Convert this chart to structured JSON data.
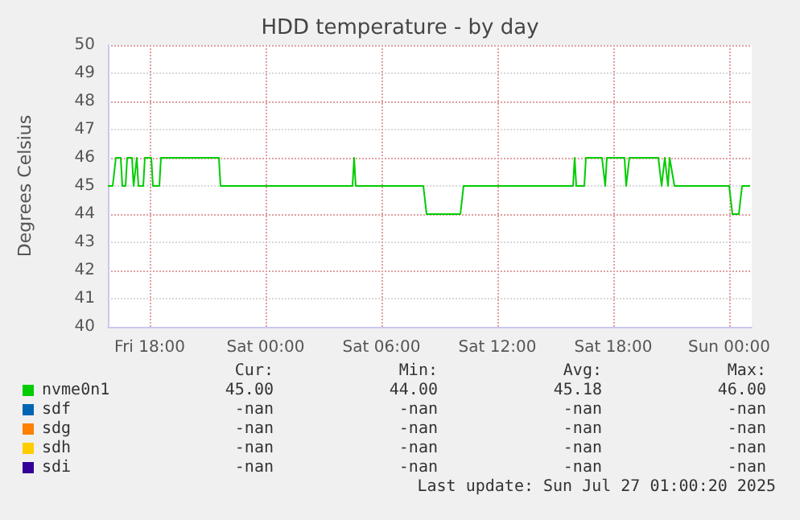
{
  "chart_data": {
    "type": "line",
    "title": "HDD temperature - by day",
    "ylabel": "Degrees Celsius",
    "xlim": [
      "2025-07-25T15:50",
      "2025-07-27T01:10"
    ],
    "xticks": [
      {
        "value": "2025-07-25T18:00",
        "label": "Fri 18:00"
      },
      {
        "value": "2025-07-26T00:00",
        "label": "Sat 00:00"
      },
      {
        "value": "2025-07-26T06:00",
        "label": "Sat 06:00"
      },
      {
        "value": "2025-07-26T12:00",
        "label": "Sat 12:00"
      },
      {
        "value": "2025-07-26T18:00",
        "label": "Sat 18:00"
      },
      {
        "value": "2025-07-27T00:00",
        "label": "Sun 00:00"
      }
    ],
    "ylim": [
      40,
      50
    ],
    "yticks": [
      40,
      41,
      42,
      43,
      44,
      45,
      46,
      47,
      48,
      49,
      50
    ],
    "grid": true,
    "legend": "bottom",
    "marker": "none",
    "line_style": "solid",
    "series": [
      {
        "name": "nvme0n1",
        "color": "#00cc00",
        "x": [
          "2025-07-25T15:50",
          "2025-07-25T16:05",
          "2025-07-25T16:15",
          "2025-07-25T16:30",
          "2025-07-25T16:35",
          "2025-07-25T16:45",
          "2025-07-25T16:50",
          "2025-07-25T17:05",
          "2025-07-25T17:10",
          "2025-07-25T17:20",
          "2025-07-25T17:25",
          "2025-07-25T17:40",
          "2025-07-25T17:45",
          "2025-07-25T18:05",
          "2025-07-25T18:10",
          "2025-07-25T18:30",
          "2025-07-25T18:35",
          "2025-07-25T21:35",
          "2025-07-25T21:40",
          "2025-07-26T04:30",
          "2025-07-26T04:35",
          "2025-07-26T04:40",
          "2025-07-26T08:10",
          "2025-07-26T08:20",
          "2025-07-26T10:05",
          "2025-07-26T10:15",
          "2025-07-26T15:55",
          "2025-07-26T16:00",
          "2025-07-26T16:05",
          "2025-07-26T16:30",
          "2025-07-26T16:35",
          "2025-07-26T17:25",
          "2025-07-26T17:35",
          "2025-07-26T17:40",
          "2025-07-26T18:35",
          "2025-07-26T18:40",
          "2025-07-26T18:50",
          "2025-07-26T20:20",
          "2025-07-26T20:30",
          "2025-07-26T20:40",
          "2025-07-26T20:50",
          "2025-07-26T20:55",
          "2025-07-26T21:10",
          "2025-07-27T00:00",
          "2025-07-27T00:10",
          "2025-07-27T00:30",
          "2025-07-27T00:40",
          "2025-07-27T01:05"
        ],
        "values": [
          45,
          45,
          46,
          46,
          45,
          45,
          46,
          46,
          45,
          46,
          45,
          45,
          46,
          46,
          45,
          45,
          46,
          46,
          45,
          45,
          46,
          45,
          45,
          44,
          44,
          45,
          45,
          46,
          45,
          45,
          46,
          46,
          45,
          46,
          46,
          45,
          46,
          46,
          45,
          46,
          45,
          46,
          45,
          45,
          44,
          44,
          45,
          45
        ]
      },
      {
        "name": "sdf",
        "color": "#0066b3"
      },
      {
        "name": "sdg",
        "color": "#ff8000"
      },
      {
        "name": "sdh",
        "color": "#ffcc00"
      },
      {
        "name": "sdi",
        "color": "#330099"
      }
    ],
    "annotations": [
      "Cur:",
      "Min:",
      "Avg:",
      "Max:",
      "45.00",
      "44.00",
      "45.18",
      "46.00",
      "-nan",
      "-nan",
      "-nan",
      "-nan",
      "-nan",
      "-nan",
      "-nan",
      "-nan",
      "-nan",
      "-nan",
      "-nan",
      "-nan",
      "-nan",
      "-nan",
      "-nan",
      "-nan",
      "Last update: Sun Jul 27 01:00:20 2025"
    ]
  }
}
